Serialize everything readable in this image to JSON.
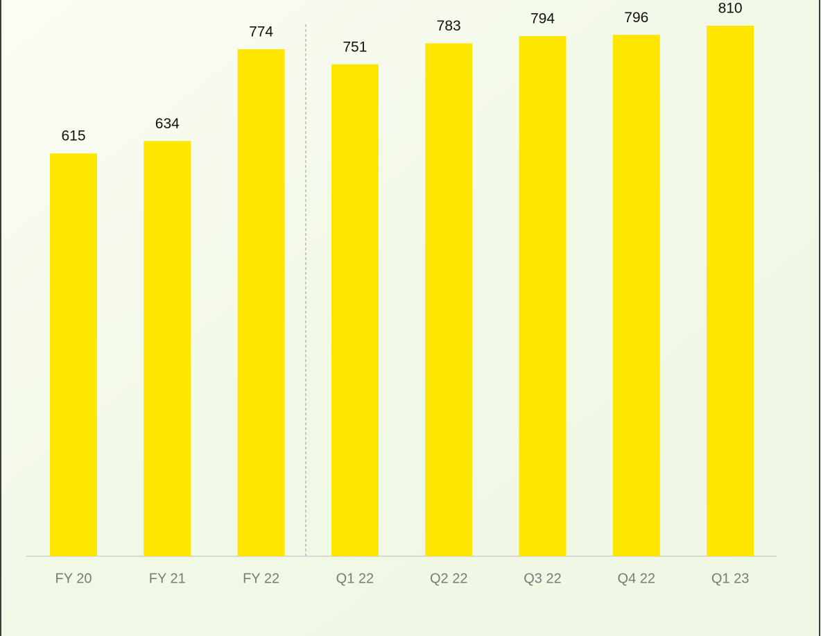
{
  "chart_data": {
    "type": "bar",
    "categories": [
      "FY 20",
      "FY 21",
      "FY 22",
      "Q1 22",
      "Q2 22",
      "Q3 22",
      "Q4 22",
      "Q1 23"
    ],
    "values": [
      615,
      634,
      774,
      751,
      783,
      794,
      796,
      810
    ],
    "color": "#ffe600"
  }
}
